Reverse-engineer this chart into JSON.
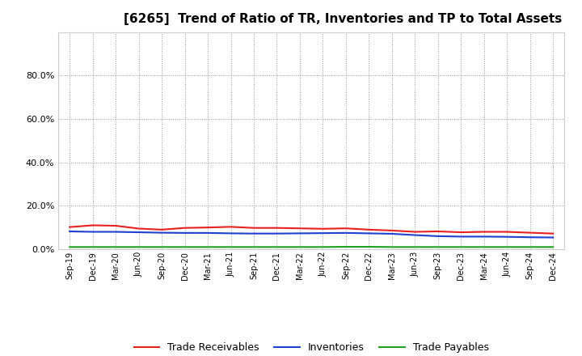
{
  "title": "[6265]  Trend of Ratio of TR, Inventories and TP to Total Assets",
  "x_labels": [
    "Sep-19",
    "Dec-19",
    "Mar-20",
    "Jun-20",
    "Sep-20",
    "Dec-20",
    "Mar-21",
    "Jun-21",
    "Sep-21",
    "Dec-21",
    "Mar-22",
    "Jun-22",
    "Sep-22",
    "Dec-22",
    "Mar-23",
    "Jun-23",
    "Sep-23",
    "Dec-23",
    "Mar-24",
    "Jun-24",
    "Sep-24",
    "Dec-24"
  ],
  "trade_receivables": [
    0.102,
    0.11,
    0.108,
    0.095,
    0.09,
    0.098,
    0.1,
    0.103,
    0.098,
    0.098,
    0.096,
    0.094,
    0.096,
    0.09,
    0.086,
    0.08,
    0.082,
    0.078,
    0.08,
    0.08,
    0.076,
    0.072
  ],
  "inventories": [
    0.082,
    0.08,
    0.08,
    0.078,
    0.076,
    0.075,
    0.075,
    0.073,
    0.072,
    0.072,
    0.073,
    0.074,
    0.075,
    0.073,
    0.071,
    0.065,
    0.06,
    0.058,
    0.058,
    0.057,
    0.055,
    0.054
  ],
  "trade_payables": [
    0.01,
    0.01,
    0.01,
    0.01,
    0.01,
    0.01,
    0.01,
    0.01,
    0.01,
    0.01,
    0.01,
    0.01,
    0.011,
    0.011,
    0.01,
    0.01,
    0.01,
    0.01,
    0.01,
    0.01,
    0.01,
    0.01
  ],
  "tr_color": "#e82020",
  "inv_color": "#2040d0",
  "tp_color": "#20a020",
  "ylim": [
    0.0,
    1.0
  ],
  "yticks": [
    0.0,
    0.2,
    0.4,
    0.6,
    0.8
  ],
  "background_color": "#ffffff",
  "plot_bg_color": "#ffffff",
  "grid_color": "#999999",
  "title_fontsize": 11,
  "legend_labels": [
    "Trade Receivables",
    "Inventories",
    "Trade Payables"
  ]
}
